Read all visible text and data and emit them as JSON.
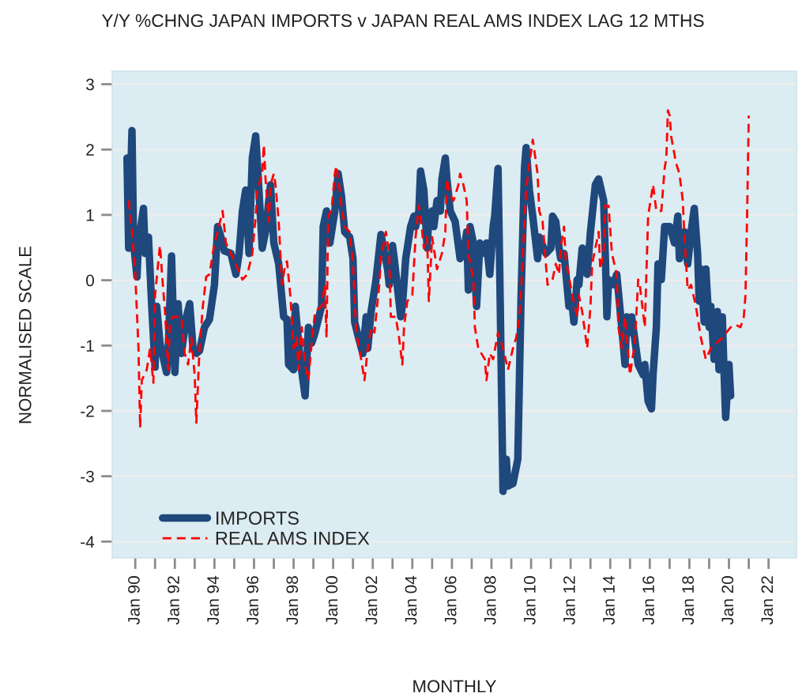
{
  "chart_data": {
    "type": "line",
    "title": "Y/Y %CHNG JAPAN IMPORTS v JAPAN REAL AMS INDEX LAG 12 MTHS",
    "xlabel": "MONTHLY",
    "ylabel": "NORMALISED SCALE",
    "xlim": [
      "1988-11",
      "2023-06"
    ],
    "ylim": [
      -4.25,
      3.2
    ],
    "yticks": [
      -4,
      -3,
      -2,
      -1,
      0,
      1,
      2,
      3
    ],
    "xticks": [
      {
        "value": "1990-01",
        "label": "Jan 90"
      },
      {
        "value": "1991-01",
        "label": null
      },
      {
        "value": "1992-01",
        "label": "Jan 92"
      },
      {
        "value": "1993-01",
        "label": null
      },
      {
        "value": "1994-01",
        "label": "Jan 94"
      },
      {
        "value": "1995-01",
        "label": null
      },
      {
        "value": "1996-01",
        "label": "Jan 96"
      },
      {
        "value": "1997-01",
        "label": null
      },
      {
        "value": "1998-01",
        "label": "Jan 98"
      },
      {
        "value": "1999-01",
        "label": null
      },
      {
        "value": "2000-01",
        "label": "Jan 00"
      },
      {
        "value": "2001-01",
        "label": null
      },
      {
        "value": "2002-01",
        "label": "Jan 02"
      },
      {
        "value": "2003-01",
        "label": null
      },
      {
        "value": "2004-01",
        "label": "Jan 04"
      },
      {
        "value": "2005-01",
        "label": null
      },
      {
        "value": "2006-01",
        "label": "Jan 06"
      },
      {
        "value": "2007-01",
        "label": null
      },
      {
        "value": "2008-01",
        "label": "Jan 08"
      },
      {
        "value": "2009-01",
        "label": null
      },
      {
        "value": "2010-01",
        "label": "Jan 10"
      },
      {
        "value": "2011-01",
        "label": null
      },
      {
        "value": "2012-01",
        "label": "Jan 12"
      },
      {
        "value": "2013-01",
        "label": null
      },
      {
        "value": "2014-01",
        "label": "Jan 14"
      },
      {
        "value": "2015-01",
        "label": null
      },
      {
        "value": "2016-01",
        "label": "Jan 16"
      },
      {
        "value": "2017-01",
        "label": null
      },
      {
        "value": "2018-01",
        "label": "Jan 18"
      },
      {
        "value": "2019-01",
        "label": null
      },
      {
        "value": "2020-01",
        "label": "Jan 20"
      },
      {
        "value": "2021-01",
        "label": null
      },
      {
        "value": "2022-01",
        "label": "Jan 22"
      }
    ],
    "grid": "y",
    "legend": "bottom left",
    "series": [
      {
        "name": "IMPORTS",
        "color": "#1f487c",
        "line_style": "solid",
        "x": [
          "1989-08",
          "1989-09",
          "1989-11",
          "1989-12",
          "1990-02",
          "1990-03",
          "1990-06",
          "1990-07",
          "1990-09",
          "1990-11",
          "1991-01",
          "1991-02",
          "1991-04",
          "1991-08",
          "1991-09",
          "1991-11",
          "1992-01",
          "1992-03",
          "1992-05",
          "1992-08",
          "1992-10",
          "1992-12",
          "1993-02",
          "1993-04",
          "1993-07",
          "1993-10",
          "1994-01",
          "1994-03",
          "1994-05",
          "1994-07",
          "1994-11",
          "1995-02",
          "1995-04",
          "1995-06",
          "1995-08",
          "1995-10",
          "1995-12",
          "1996-02",
          "1996-04",
          "1996-06",
          "1996-08",
          "1996-11",
          "1997-01",
          "1997-04",
          "1997-07",
          "1997-09",
          "1997-10",
          "1998-01",
          "1998-02",
          "1998-05",
          "1998-08",
          "1998-10",
          "1998-12",
          "1999-02",
          "1999-06",
          "1999-07",
          "1999-09",
          "1999-11",
          "2000-02",
          "2000-04",
          "2000-06",
          "2000-08",
          "2000-11",
          "2001-01",
          "2001-02",
          "2001-04",
          "2001-07",
          "2001-09",
          "2001-10",
          "2001-12",
          "2002-03",
          "2002-06",
          "2002-10",
          "2002-11",
          "2003-01",
          "2003-02",
          "2003-06",
          "2003-07",
          "2003-09",
          "2003-12",
          "2004-02",
          "2004-03",
          "2004-05",
          "2004-06",
          "2004-08",
          "2004-10",
          "2004-11",
          "2005-01",
          "2005-02",
          "2005-04",
          "2005-06",
          "2005-07",
          "2005-09",
          "2005-10",
          "2005-12",
          "2006-03",
          "2006-06",
          "2006-08",
          "2006-10",
          "2006-11",
          "2006-12",
          "2007-02",
          "2007-04",
          "2007-06",
          "2007-09",
          "2007-10",
          "2007-12",
          "2008-02",
          "2008-03",
          "2008-05",
          "2008-06",
          "2008-08",
          "2008-10",
          "2008-11",
          "2009-02",
          "2009-05",
          "2009-07",
          "2009-09",
          "2009-10",
          "2009-12",
          "2010-02",
          "2010-05",
          "2010-06",
          "2010-10",
          "2011-01",
          "2011-02",
          "2011-04",
          "2011-06",
          "2011-07",
          "2011-09",
          "2011-12",
          "2012-02",
          "2012-03",
          "2012-05",
          "2012-06",
          "2012-08",
          "2012-11",
          "2013-01",
          "2013-04",
          "2013-06",
          "2013-09",
          "2013-10",
          "2013-11",
          "2013-12",
          "2014-03",
          "2014-05",
          "2014-08",
          "2014-10",
          "2014-11",
          "2015-01",
          "2015-02",
          "2015-06",
          "2015-09",
          "2015-10",
          "2015-12",
          "2016-02",
          "2016-03",
          "2016-05",
          "2016-06",
          "2016-08",
          "2016-10",
          "2017-01",
          "2017-02",
          "2017-04",
          "2017-06",
          "2017-07",
          "2017-10",
          "2017-12",
          "2018-02",
          "2018-04",
          "2018-06",
          "2018-07",
          "2018-08",
          "2018-10",
          "2018-11",
          "2019-01",
          "2019-02",
          "2019-04",
          "2019-06",
          "2019-07",
          "2019-09",
          "2019-10",
          "2019-11",
          "2020-01",
          "2020-02"
        ],
        "values": [
          1.87,
          0.49,
          2.29,
          0.57,
          0.05,
          0.57,
          1.1,
          0.41,
          0.66,
          -0.4,
          -1.33,
          -0.4,
          -0.96,
          -1.41,
          -1.04,
          0.37,
          -1.41,
          -0.36,
          -1.12,
          -0.56,
          -0.36,
          -1.04,
          -1.12,
          -1.08,
          -0.72,
          -0.6,
          -0.07,
          0.82,
          0.66,
          0.45,
          0.41,
          0.09,
          0.41,
          1.06,
          1.38,
          0.41,
          1.87,
          2.21,
          1.38,
          0.49,
          0.74,
          1.46,
          0.57,
          0.25,
          -0.56,
          -0.6,
          -1.29,
          -1.37,
          -0.4,
          -1.21,
          -1.77,
          -0.72,
          -0.96,
          -0.8,
          -0.4,
          0.82,
          1.06,
          0.57,
          1.06,
          1.63,
          1.3,
          0.74,
          0.66,
          0.33,
          -0.64,
          -0.84,
          -1.12,
          -0.56,
          -1.04,
          -0.48,
          0.0,
          0.7,
          0.17,
          -0.07,
          0.53,
          0.33,
          -0.56,
          -0.4,
          0.33,
          0.82,
          0.98,
          0.82,
          1.06,
          1.67,
          1.38,
          0.49,
          0.98,
          1.06,
          0.82,
          1.22,
          1.06,
          1.55,
          1.87,
          1.55,
          1.06,
          0.9,
          0.33,
          0.41,
          0.74,
          -0.15,
          0.82,
          0.57,
          -0.4,
          0.57,
          0.41,
          0.57,
          0.09,
          0.82,
          0.98,
          1.71,
          0.17,
          -3.23,
          -2.74,
          -3.15,
          -3.11,
          -2.74,
          -0.23,
          1.71,
          2.03,
          1.38,
          0.98,
          0.33,
          0.66,
          0.41,
          0.49,
          0.98,
          0.9,
          0.49,
          0.33,
          0.41,
          -0.4,
          -0.4,
          -0.64,
          0.01,
          -0.07,
          0.49,
          0.09,
          0.74,
          1.46,
          1.55,
          1.22,
          0.41,
          -0.56,
          0.01,
          -0.07,
          0.09,
          -0.72,
          -1.29,
          -0.56,
          -0.8,
          -0.56,
          -1.29,
          -1.45,
          -1.29,
          -1.85,
          -1.97,
          -1.45,
          -0.72,
          0.25,
          0.01,
          0.82,
          0.82,
          0.74,
          0.57,
          0.98,
          0.33,
          0.74,
          0.25,
          0.74,
          1.1,
          0.41,
          -0.32,
          0.17,
          -0.64,
          0.17,
          -0.72,
          -0.4,
          -1.21,
          -0.48,
          -1.37,
          -0.56,
          -1.37,
          -2.1,
          -1.29,
          -1.77
        ]
      },
      {
        "name": "REAL AMS INDEX",
        "color": "#ff0000",
        "line_style": "dashed",
        "x": [
          "1989-09",
          "1989-11",
          "1990-01",
          "1990-03",
          "1990-04",
          "1990-05",
          "1990-08",
          "1990-10",
          "1990-12",
          "1991-01",
          "1991-04",
          "1991-06",
          "1991-07",
          "1991-09",
          "1991-10",
          "1991-12",
          "1992-05",
          "1992-07",
          "1992-09",
          "1992-11",
          "1993-01",
          "1993-02",
          "1993-04",
          "1993-06",
          "1993-08",
          "1993-10",
          "1994-01",
          "1994-03",
          "1994-06",
          "1994-08",
          "1994-11",
          "1995-02",
          "1995-06",
          "1995-09",
          "1995-12",
          "1996-02",
          "1996-03",
          "1996-06",
          "1996-07",
          "1996-08",
          "1996-10",
          "1996-11",
          "1997-01",
          "1997-02",
          "1997-04",
          "1997-06",
          "1997-08",
          "1997-09",
          "1997-11",
          "1998-01",
          "1998-03",
          "1998-04",
          "1998-06",
          "1998-08",
          "1998-10",
          "1998-12",
          "1999-02",
          "1999-06",
          "1999-08",
          "1999-09",
          "1999-10",
          "1999-12",
          "2000-02",
          "2000-03",
          "2000-05",
          "2000-06",
          "2000-08",
          "2000-11",
          "2001-01",
          "2001-03",
          "2001-06",
          "2001-08",
          "2001-10",
          "2001-12",
          "2002-02",
          "2002-05",
          "2002-06",
          "2002-09",
          "2002-11",
          "2002-12",
          "2003-03",
          "2003-05",
          "2003-07",
          "2003-08",
          "2003-10",
          "2004-01",
          "2004-03",
          "2004-05",
          "2004-06",
          "2004-08",
          "2004-10",
          "2004-11",
          "2005-01",
          "2005-04",
          "2005-07",
          "2005-09",
          "2005-10",
          "2005-12",
          "2006-02",
          "2006-05",
          "2006-06",
          "2006-08",
          "2006-10",
          "2006-11",
          "2007-02",
          "2007-03",
          "2007-05",
          "2007-09",
          "2007-10",
          "2007-12",
          "2008-02",
          "2008-05",
          "2008-08",
          "2008-11",
          "2009-02",
          "2009-04",
          "2009-06",
          "2009-07",
          "2009-09",
          "2009-10",
          "2009-12",
          "2010-02",
          "2010-05",
          "2010-06",
          "2010-08",
          "2010-10",
          "2010-11",
          "2011-02",
          "2011-04",
          "2011-06",
          "2011-07",
          "2011-09",
          "2011-10",
          "2012-02",
          "2012-05",
          "2012-06",
          "2012-08",
          "2012-11",
          "2013-01",
          "2013-02",
          "2013-06",
          "2013-07",
          "2013-09",
          "2013-10",
          "2013-12",
          "2014-02",
          "2014-05",
          "2014-06",
          "2014-08",
          "2014-10",
          "2015-01",
          "2015-04",
          "2015-06",
          "2015-07",
          "2015-10",
          "2015-12",
          "2016-03",
          "2016-05",
          "2016-08",
          "2016-10",
          "2016-11",
          "2016-12",
          "2017-01",
          "2017-02",
          "2017-05",
          "2017-07",
          "2017-09",
          "2017-10",
          "2017-12",
          "2018-02",
          "2018-05",
          "2018-08",
          "2018-11",
          "2019-02",
          "2019-09",
          "2020-02",
          "2020-05",
          "2020-08",
          "2020-10",
          "2020-11",
          "2020-12",
          "2021-01"
        ],
        "values": [
          1.22,
          0.74,
          0.09,
          -1.04,
          -2.26,
          -1.53,
          -1.37,
          -1.04,
          -1.57,
          -0.23,
          0.53,
          -0.15,
          -0.44,
          -1.37,
          -0.64,
          -0.56,
          -0.56,
          -1.12,
          -1.29,
          -0.88,
          -1.45,
          -2.18,
          -1.04,
          -0.4,
          0.05,
          0.09,
          0.57,
          0.74,
          1.06,
          0.57,
          0.41,
          0.25,
          0.01,
          0.09,
          0.41,
          0.98,
          1.38,
          1.63,
          2.07,
          1.55,
          0.9,
          1.46,
          1.63,
          1.46,
          0.9,
          -0.07,
          0.25,
          0.29,
          -0.23,
          -1.04,
          -0.88,
          -1.37,
          -0.72,
          -1.29,
          -1.53,
          -0.96,
          -0.48,
          -0.4,
          -0.07,
          -0.88,
          0.98,
          1.06,
          1.63,
          1.75,
          1.38,
          1.14,
          0.82,
          0.74,
          0.25,
          -0.8,
          -1.21,
          -1.53,
          -1.04,
          -0.72,
          -0.8,
          -0.07,
          0.33,
          0.74,
          0.41,
          -0.56,
          -0.56,
          -0.88,
          -1.29,
          -0.72,
          -0.32,
          -0.23,
          0.66,
          1.14,
          0.98,
          0.49,
          0.66,
          -0.32,
          0.66,
          0.17,
          0.41,
          0.74,
          1.55,
          1.3,
          1.22,
          1.46,
          1.63,
          1.46,
          1.22,
          0.41,
          0.01,
          -0.72,
          -1.04,
          -1.21,
          -1.53,
          -1.12,
          -1.21,
          -0.8,
          -1.04,
          -1.37,
          -1.04,
          -0.88,
          -0.56,
          -0.15,
          0.9,
          1.38,
          1.79,
          2.15,
          1.63,
          1.06,
          0.9,
          0.25,
          -0.07,
          0.01,
          0.25,
          0.09,
          0.49,
          0.82,
          0.33,
          -0.23,
          -0.56,
          -0.23,
          -0.48,
          -1.04,
          -0.4,
          0.25,
          0.74,
          0.17,
          0.41,
          1.14,
          1.14,
          0.41,
          0.09,
          -0.72,
          -1.04,
          -0.56,
          -1.45,
          -0.96,
          0.01,
          -0.07,
          -0.72,
          0.98,
          1.46,
          1.06,
          1.06,
          1.71,
          1.87,
          2.6,
          2.52,
          2.19,
          1.79,
          1.63,
          1.22,
          0.66,
          -0.15,
          -0.07,
          -0.4,
          -0.88,
          -1.21,
          -1.04,
          -0.88,
          -0.72,
          -0.68,
          -0.72,
          -0.56,
          -0.23,
          0.98,
          2.52
        ]
      }
    ]
  }
}
